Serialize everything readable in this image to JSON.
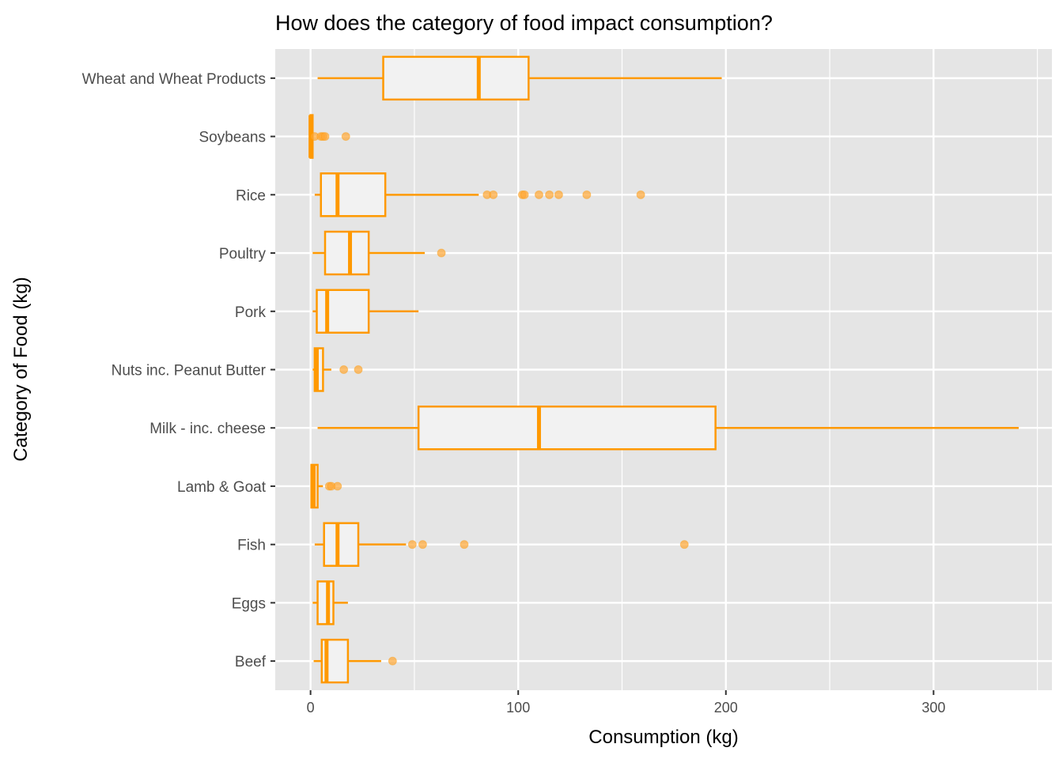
{
  "chart_data": {
    "type": "boxplot",
    "orientation": "horizontal",
    "title": "How does the category of food impact consumption?",
    "xlabel": "Consumption (kg)",
    "ylabel": "Category of Food (kg)",
    "xlim": [
      -17,
      357
    ],
    "xticks": [
      0,
      100,
      200,
      300
    ],
    "grid": true,
    "colors": {
      "box": "#FF9900",
      "fill": "#F2F2F2",
      "outlier": "#FFA733",
      "panel": "#E5E5E5",
      "grid": "#FFFFFF"
    },
    "categories": [
      "Beef",
      "Eggs",
      "Fish",
      "Lamb & Goat",
      "Milk - inc. cheese",
      "Nuts inc. Peanut Butter",
      "Pork",
      "Poultry",
      "Rice",
      "Soybeans",
      "Wheat and Wheat Products"
    ],
    "boxes": [
      {
        "category": "Beef",
        "min": 1.5,
        "q1": 5.4,
        "median": 7.7,
        "q3": 18,
        "max": 34,
        "outliers": [
          39.5
        ]
      },
      {
        "category": "Eggs",
        "min": 1,
        "q1": 3.4,
        "median": 8.4,
        "q3": 11,
        "max": 18,
        "outliers": []
      },
      {
        "category": "Fish",
        "min": 2,
        "q1": 6.5,
        "median": 13,
        "q3": 23,
        "max": 46,
        "outliers": [
          49,
          54,
          74,
          180
        ]
      },
      {
        "category": "Lamb & Goat",
        "min": 0.3,
        "q1": 0.4,
        "median": 1.5,
        "q3": 3.4,
        "max": 6,
        "outliers": [
          9,
          10,
          13
        ]
      },
      {
        "category": "Milk - inc. cheese",
        "min": 3.4,
        "q1": 52,
        "median": 110,
        "q3": 195,
        "max": 341,
        "outliers": []
      },
      {
        "category": "Nuts inc. Peanut Butter",
        "min": 1,
        "q1": 2,
        "median": 3,
        "q3": 6,
        "max": 10,
        "outliers": [
          16,
          23
        ]
      },
      {
        "category": "Pork",
        "min": 1,
        "q1": 3,
        "median": 8,
        "q3": 28,
        "max": 52,
        "outliers": []
      },
      {
        "category": "Poultry",
        "min": 1,
        "q1": 7,
        "median": 19,
        "q3": 28,
        "max": 55,
        "outliers": [
          63
        ]
      },
      {
        "category": "Rice",
        "min": 2,
        "q1": 5,
        "median": 13,
        "q3": 36,
        "max": 81,
        "outliers": [
          85,
          88,
          102,
          103,
          110,
          115,
          119.5,
          133,
          159
        ]
      },
      {
        "category": "Soybeans",
        "min": 0,
        "q1": 0,
        "median": 0,
        "q3": 1,
        "max": 1,
        "outliers": [
          2,
          5,
          6,
          7,
          17
        ]
      },
      {
        "category": "Wheat and Wheat Products",
        "min": 3.4,
        "q1": 35,
        "median": 81,
        "q3": 105,
        "max": 198,
        "outliers": []
      }
    ]
  }
}
